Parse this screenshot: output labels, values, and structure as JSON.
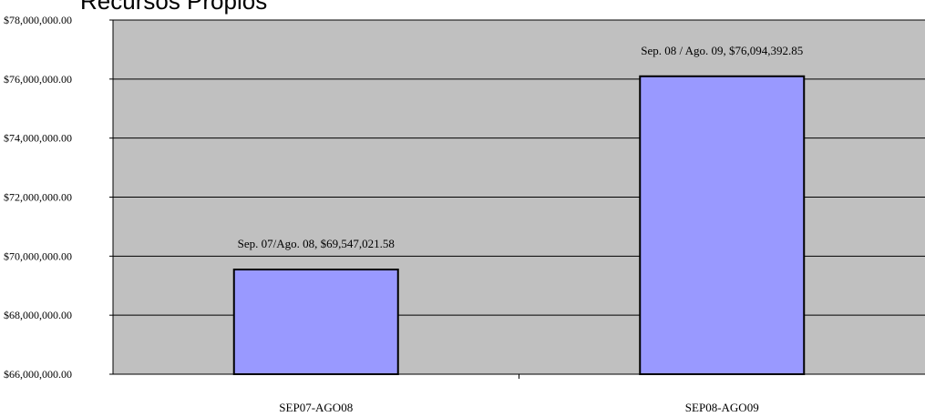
{
  "chart_data": {
    "type": "bar",
    "title": "Recursos Propios",
    "xlabel": "",
    "ylabel": "",
    "categories": [
      "SEP07-AGO08",
      "SEP08-AGO09"
    ],
    "values": [
      69547021.58,
      76094392.85
    ],
    "data_labels": [
      "Sep. 07/Ago. 08, $69,547,021.58",
      "Sep. 08 / Ago. 09, $76,094,392.85"
    ],
    "ylim": [
      66000000,
      78000000
    ],
    "yticks": [
      66000000,
      68000000,
      70000000,
      72000000,
      74000000,
      76000000,
      78000000
    ],
    "ytick_labels": [
      "$66,000,000.00",
      "$68,000,000.00",
      "$70,000,000.00",
      "$72,000,000.00",
      "$74,000,000.00",
      "$76,000,000.00",
      "$78,000,000.00"
    ],
    "grid": true,
    "colors": {
      "plot_bg": "#c0c0c0",
      "bar": "#9999ff",
      "bar_border": "#000000",
      "grid": "#000000"
    }
  }
}
